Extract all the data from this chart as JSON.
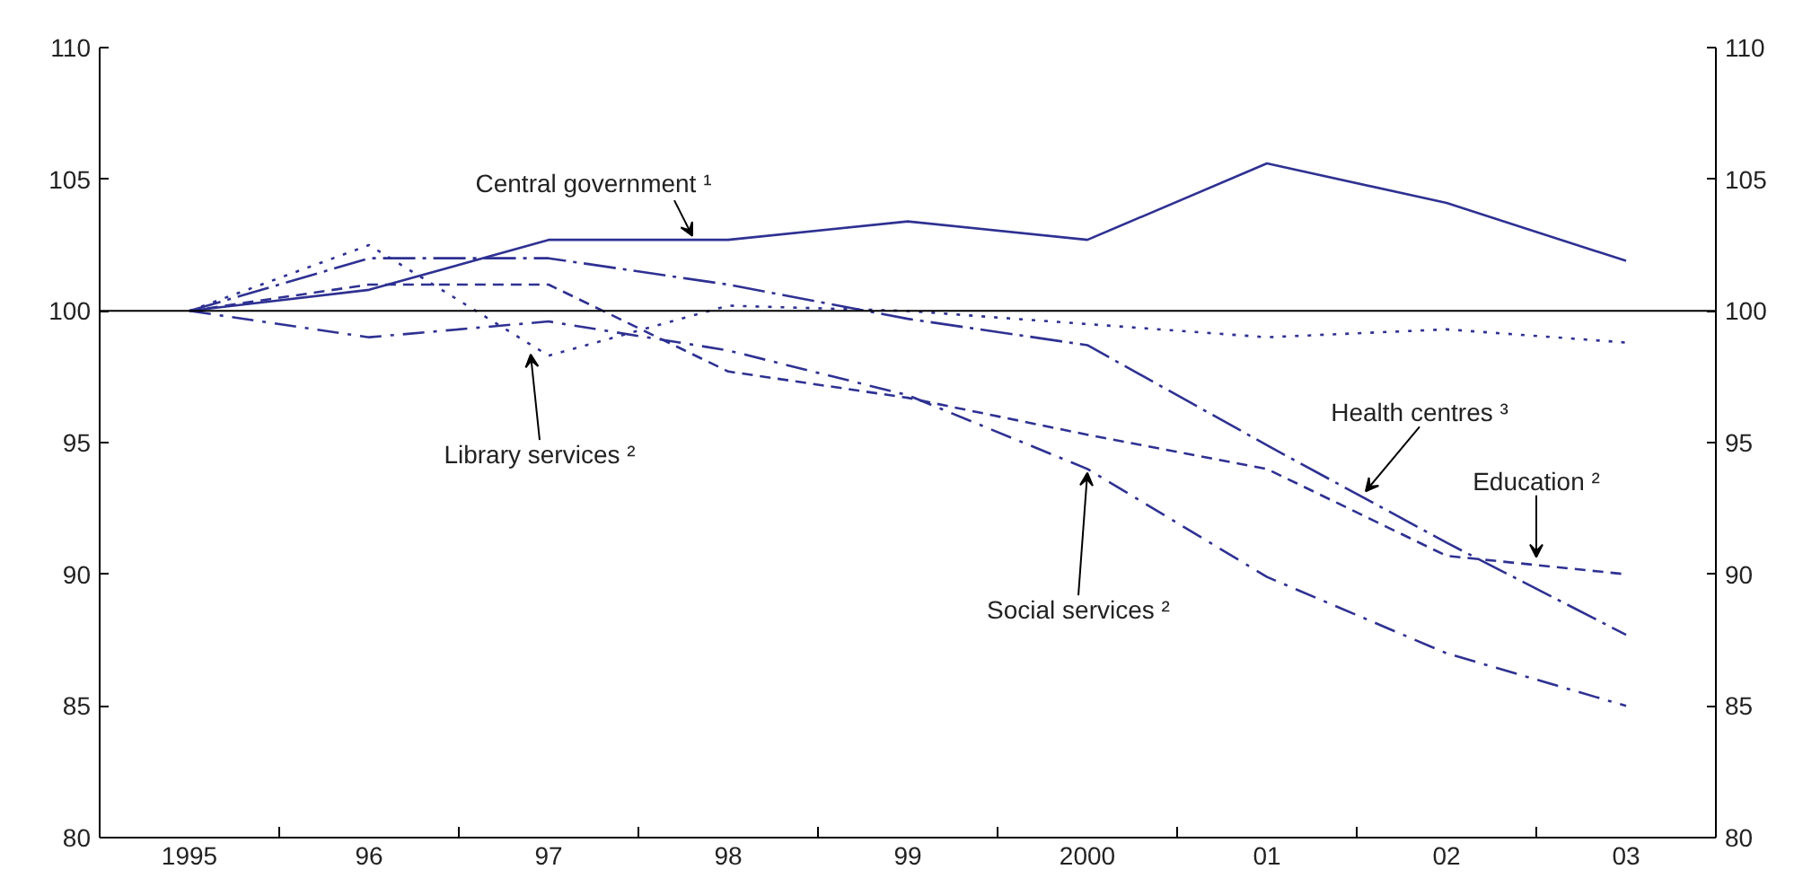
{
  "chart_data": {
    "type": "line",
    "x": [
      1995,
      1996,
      1997,
      1998,
      1999,
      2000,
      2001,
      2002,
      2003
    ],
    "xlim": [
      1994.5,
      2003.5
    ],
    "xticks": [
      {
        "value": 1995,
        "label": "1995"
      },
      {
        "value": 1996,
        "label": "96"
      },
      {
        "value": 1997,
        "label": "97"
      },
      {
        "value": 1998,
        "label": "98"
      },
      {
        "value": 1999,
        "label": "99"
      },
      2000,
      {
        "value": 2001,
        "label": "01"
      },
      {
        "value": 2002,
        "label": "02"
      },
      {
        "value": 2003,
        "label": "03"
      }
    ],
    "ylim": [
      80,
      110
    ],
    "yticks": [
      80,
      85,
      90,
      95,
      100,
      105,
      110
    ],
    "y2lim": [
      80,
      110
    ],
    "y2ticks": [
      80,
      85,
      90,
      95,
      100,
      105,
      110
    ],
    "grid": false,
    "series": [
      {
        "color": "#2e3192",
        "line_style": "solid",
        "values": [
          100,
          100.8,
          102.7,
          102.7,
          103.4,
          102.7,
          105.6,
          104.1,
          101.9
        ]
      },
      {
        "color": "#2e3192",
        "line_style": "dotted",
        "values": [
          100,
          102.5,
          98.3,
          100.2,
          100,
          99.5,
          99.0,
          99.3,
          98.8
        ]
      },
      {
        "color": "#2e3192",
        "line_style": "dashed",
        "values": [
          100,
          101.0,
          101.0,
          97.7,
          96.7,
          95.3,
          94.0,
          90.7,
          90.0
        ]
      },
      {
        "color": "#2e3192",
        "line_style": "longdashdot",
        "values": [
          100,
          102.0,
          102.0,
          101.0,
          99.7,
          98.7,
          94.9,
          91.2,
          87.7
        ]
      },
      {
        "color": "#2e3192",
        "line_style": "dashdot",
        "values": [
          100,
          99.0,
          99.6,
          98.5,
          96.8,
          94.0,
          89.9,
          87.0,
          85.0
        ]
      }
    ],
    "ref_lines": [
      {
        "axis": "y",
        "value": 100,
        "color": "#000000"
      }
    ],
    "annotations": [
      {
        "text": "Central government ¹",
        "x": 1997.8,
        "y": 102.7
      },
      {
        "text": "Library services ²",
        "x": 1996.9,
        "y": 98.5
      },
      {
        "text": "Social services ²",
        "x": 2000.0,
        "y": 94.0
      },
      {
        "text": "Health centres ³",
        "x": 2001.55,
        "y": 93.0
      },
      {
        "text": "Education ²",
        "x": 2002.5,
        "y": 90.5
      }
    ]
  }
}
